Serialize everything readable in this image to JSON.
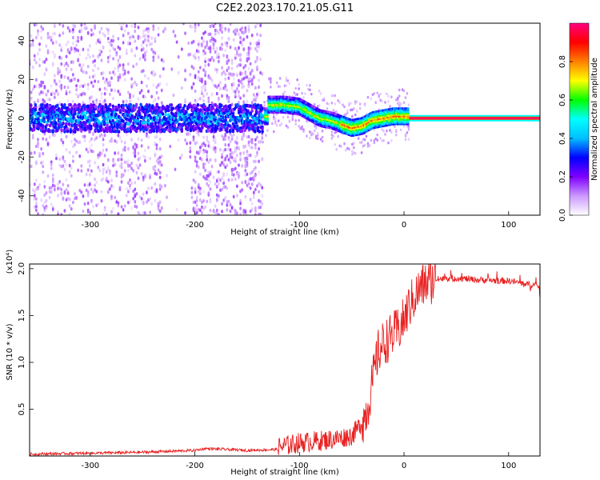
{
  "title": "C2E2.2023.170.21.05.G11",
  "chart_data": [
    {
      "type": "heatmap",
      "xlabel": "Height of straight line (km)",
      "ylabel": "Frequency (Hz)",
      "xlim": [
        -358,
        130
      ],
      "ylim": [
        -50,
        49
      ],
      "xticks": [
        -300,
        -200,
        -100,
        0,
        100
      ],
      "yticks": [
        -40,
        -20,
        0,
        20,
        40
      ],
      "grid": false,
      "colorbar": {
        "label": "Normalized spectral amplitude",
        "ticks": [
          "0.0",
          "0.2",
          "0.4",
          "0.6",
          "0.8"
        ],
        "range": [
          0,
          1
        ],
        "stops": [
          "#ffffff",
          "#cc99ff",
          "#7f00ff",
          "#0000ff",
          "#00bfff",
          "#00ffff",
          "#00ff00",
          "#ffff00",
          "#ff8000",
          "#ff0000",
          "#ff0080"
        ]
      },
      "ridge": {
        "x": [
          -130,
          -115,
          -100,
          -90,
          -80,
          -70,
          -60,
          -50,
          -40,
          -30,
          -20,
          -10,
          0,
          5
        ],
        "y": [
          7,
          7,
          6,
          3,
          0,
          -1,
          -3,
          -5,
          -4,
          -1,
          0,
          1,
          1,
          1
        ]
      },
      "tone": {
        "x_start": 5,
        "x_end": 130,
        "y": 0
      }
    },
    {
      "type": "line",
      "xlabel": "Height of straight line (km)",
      "ylabel": "SNR (10 * v/v)",
      "y_multiplier": "(x10⁴)",
      "xlim": [
        -358,
        130
      ],
      "ylim": [
        0,
        2.05
      ],
      "xticks": [
        -300,
        -200,
        -100,
        0,
        100
      ],
      "yticks": [
        0.5,
        1.0,
        1.5,
        2.0
      ],
      "grid": false,
      "color": "#e82020",
      "series": [
        {
          "x": [
            -358,
            -300,
            -250,
            -200,
            -190,
            -150,
            -120,
            -100,
            -80,
            -60,
            -50,
            -45,
            -40,
            -35,
            -30,
            -25,
            -20,
            -15,
            -10,
            -5,
            0,
            5,
            10,
            15,
            20,
            25,
            30,
            40,
            50,
            60,
            70,
            80,
            90,
            100,
            110,
            120,
            130
          ],
          "y": [
            0.02,
            0.03,
            0.04,
            0.06,
            0.08,
            0.06,
            0.07,
            0.12,
            0.14,
            0.17,
            0.2,
            0.26,
            0.35,
            0.5,
            0.8,
            1.1,
            1.2,
            1.25,
            1.3,
            1.35,
            1.45,
            1.6,
            1.7,
            1.78,
            1.84,
            1.86,
            1.88,
            1.9,
            1.9,
            1.89,
            1.88,
            1.88,
            1.87,
            1.87,
            1.85,
            1.83,
            1.81
          ]
        }
      ]
    }
  ]
}
